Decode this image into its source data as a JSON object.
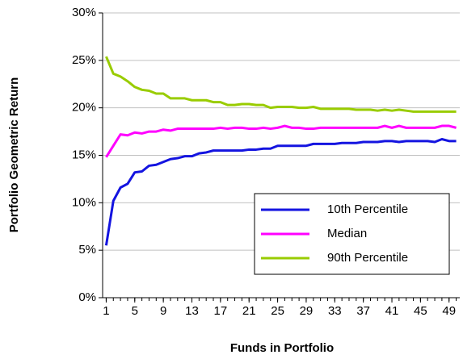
{
  "chart_data": {
    "type": "line",
    "x_label": "Funds in Portfolio",
    "y_label": "Portfolio Geometric Return",
    "x": [
      1,
      2,
      3,
      4,
      5,
      6,
      7,
      8,
      9,
      10,
      11,
      12,
      13,
      14,
      15,
      16,
      17,
      18,
      19,
      20,
      21,
      22,
      23,
      24,
      25,
      26,
      27,
      28,
      29,
      30,
      31,
      32,
      33,
      34,
      35,
      36,
      37,
      38,
      39,
      40,
      41,
      42,
      43,
      44,
      45,
      46,
      47,
      48,
      49,
      50
    ],
    "series": [
      {
        "name": "10th Percentile",
        "color": "#1414e0",
        "values": [
          5.5,
          10.2,
          11.6,
          12.0,
          13.2,
          13.3,
          13.9,
          14.0,
          14.3,
          14.6,
          14.7,
          14.9,
          14.9,
          15.2,
          15.3,
          15.5,
          15.5,
          15.5,
          15.5,
          15.5,
          15.6,
          15.6,
          15.7,
          15.7,
          16.0,
          16.0,
          16.0,
          16.0,
          16.0,
          16.2,
          16.2,
          16.2,
          16.2,
          16.3,
          16.3,
          16.3,
          16.4,
          16.4,
          16.4,
          16.5,
          16.5,
          16.4,
          16.5,
          16.5,
          16.5,
          16.5,
          16.4,
          16.7,
          16.5,
          16.5
        ]
      },
      {
        "name": "Median",
        "color": "#ff00ff",
        "values": [
          14.8,
          16.0,
          17.2,
          17.1,
          17.4,
          17.3,
          17.5,
          17.5,
          17.7,
          17.6,
          17.8,
          17.8,
          17.8,
          17.8,
          17.8,
          17.8,
          17.9,
          17.8,
          17.9,
          17.9,
          17.8,
          17.8,
          17.9,
          17.8,
          17.9,
          18.1,
          17.9,
          17.9,
          17.8,
          17.8,
          17.9,
          17.9,
          17.9,
          17.9,
          17.9,
          17.9,
          17.9,
          17.9,
          17.9,
          18.1,
          17.9,
          18.1,
          17.9,
          17.9,
          17.9,
          17.9,
          17.9,
          18.1,
          18.1,
          17.9
        ]
      },
      {
        "name": "90th Percentile",
        "color": "#99cc00",
        "values": [
          25.4,
          23.6,
          23.3,
          22.8,
          22.2,
          21.9,
          21.8,
          21.5,
          21.5,
          21.0,
          21.0,
          21.0,
          20.8,
          20.8,
          20.8,
          20.6,
          20.6,
          20.3,
          20.3,
          20.4,
          20.4,
          20.3,
          20.3,
          20.0,
          20.1,
          20.1,
          20.1,
          20.0,
          20.0,
          20.1,
          19.9,
          19.9,
          19.9,
          19.9,
          19.9,
          19.8,
          19.8,
          19.8,
          19.7,
          19.8,
          19.7,
          19.8,
          19.7,
          19.6,
          19.6,
          19.6,
          19.6,
          19.6,
          19.6,
          19.6
        ]
      }
    ],
    "xlim": [
      0.5,
      50.5
    ],
    "xticks": [
      1,
      5,
      9,
      13,
      17,
      21,
      25,
      29,
      33,
      37,
      41,
      45,
      49
    ],
    "ylim": [
      0,
      30
    ],
    "yticks": [
      {
        "value": 0,
        "label": "0%"
      },
      {
        "value": 5,
        "label": "5%"
      },
      {
        "value": 10,
        "label": "10%"
      },
      {
        "value": 15,
        "label": "15%"
      },
      {
        "value": 20,
        "label": "20%"
      },
      {
        "value": 25,
        "label": "25%"
      },
      {
        "value": 30,
        "label": "30%"
      }
    ],
    "grid": true,
    "legend": "lower right"
  }
}
